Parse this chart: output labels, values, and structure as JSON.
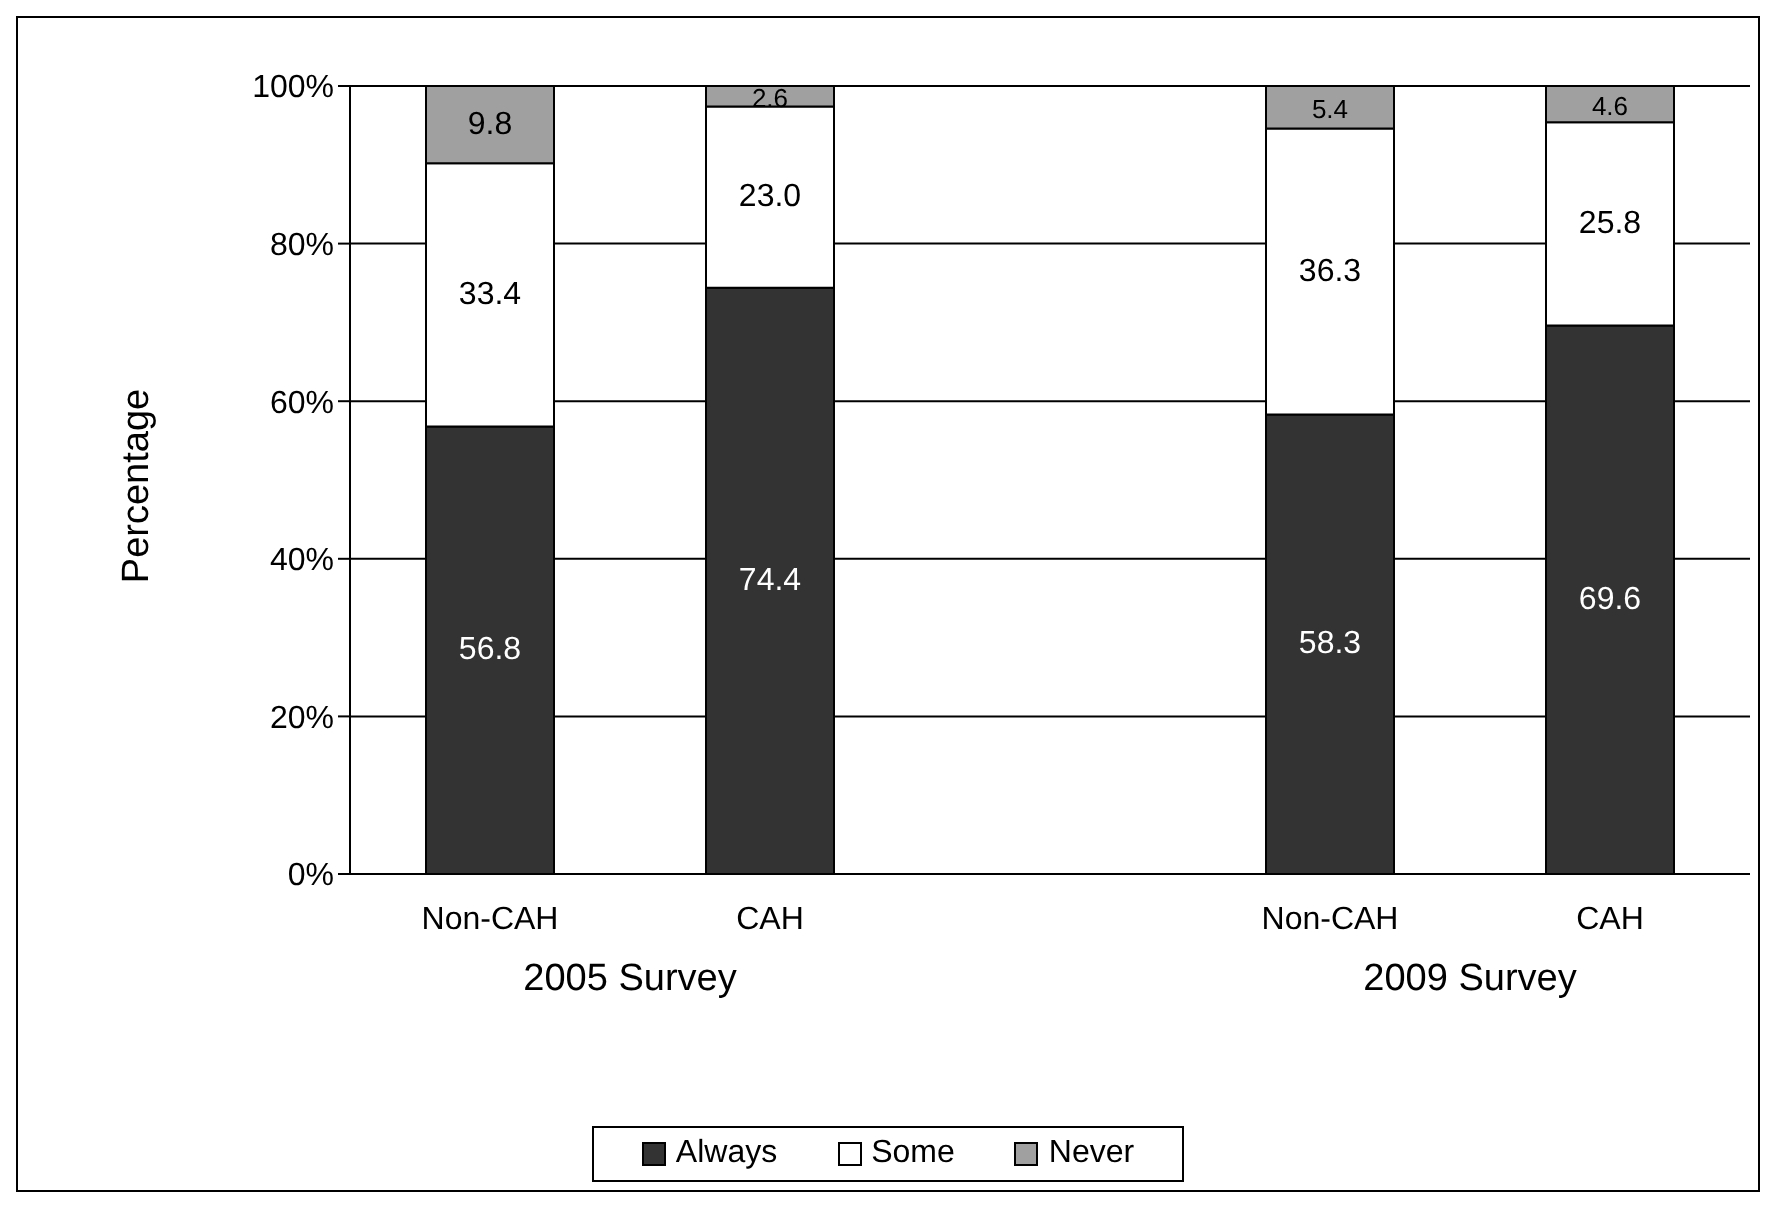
{
  "chart_data": {
    "type": "bar",
    "stacked": true,
    "ylabel": "Percentage",
    "categories": [
      "Non-CAH",
      "CAH",
      null,
      "Non-CAH",
      "CAH"
    ],
    "series": [
      {
        "name": "Always",
        "color": "#333333",
        "values": [
          56.8,
          74.4,
          null,
          58.3,
          69.6
        ],
        "value_labels": [
          "56.8",
          "74.4",
          null,
          "58.3",
          "69.6"
        ]
      },
      {
        "name": "Some",
        "color": "#ffffff",
        "values": [
          33.4,
          23.0,
          null,
          36.3,
          25.8
        ],
        "value_labels": [
          "33.4",
          "23.0",
          null,
          "36.3",
          "25.8"
        ]
      },
      {
        "name": "Never",
        "color": "#a0a0a0",
        "values": [
          9.8,
          2.6,
          null,
          5.4,
          4.6
        ],
        "value_labels": [
          "9.8",
          "2.6",
          null,
          "5.4",
          "4.6"
        ]
      }
    ],
    "ylim": [
      0,
      100
    ],
    "yticks": [
      {
        "value": 0,
        "label": "0%"
      },
      {
        "value": 20,
        "label": "20%"
      },
      {
        "value": 40,
        "label": "40%"
      },
      {
        "value": 60,
        "label": "60%"
      },
      {
        "value": 80,
        "label": "80%"
      },
      {
        "value": 100,
        "label": "100%"
      }
    ],
    "grid": "y",
    "legend": "bottom",
    "annotations": [
      "2005 Survey",
      "2009 Survey"
    ]
  }
}
